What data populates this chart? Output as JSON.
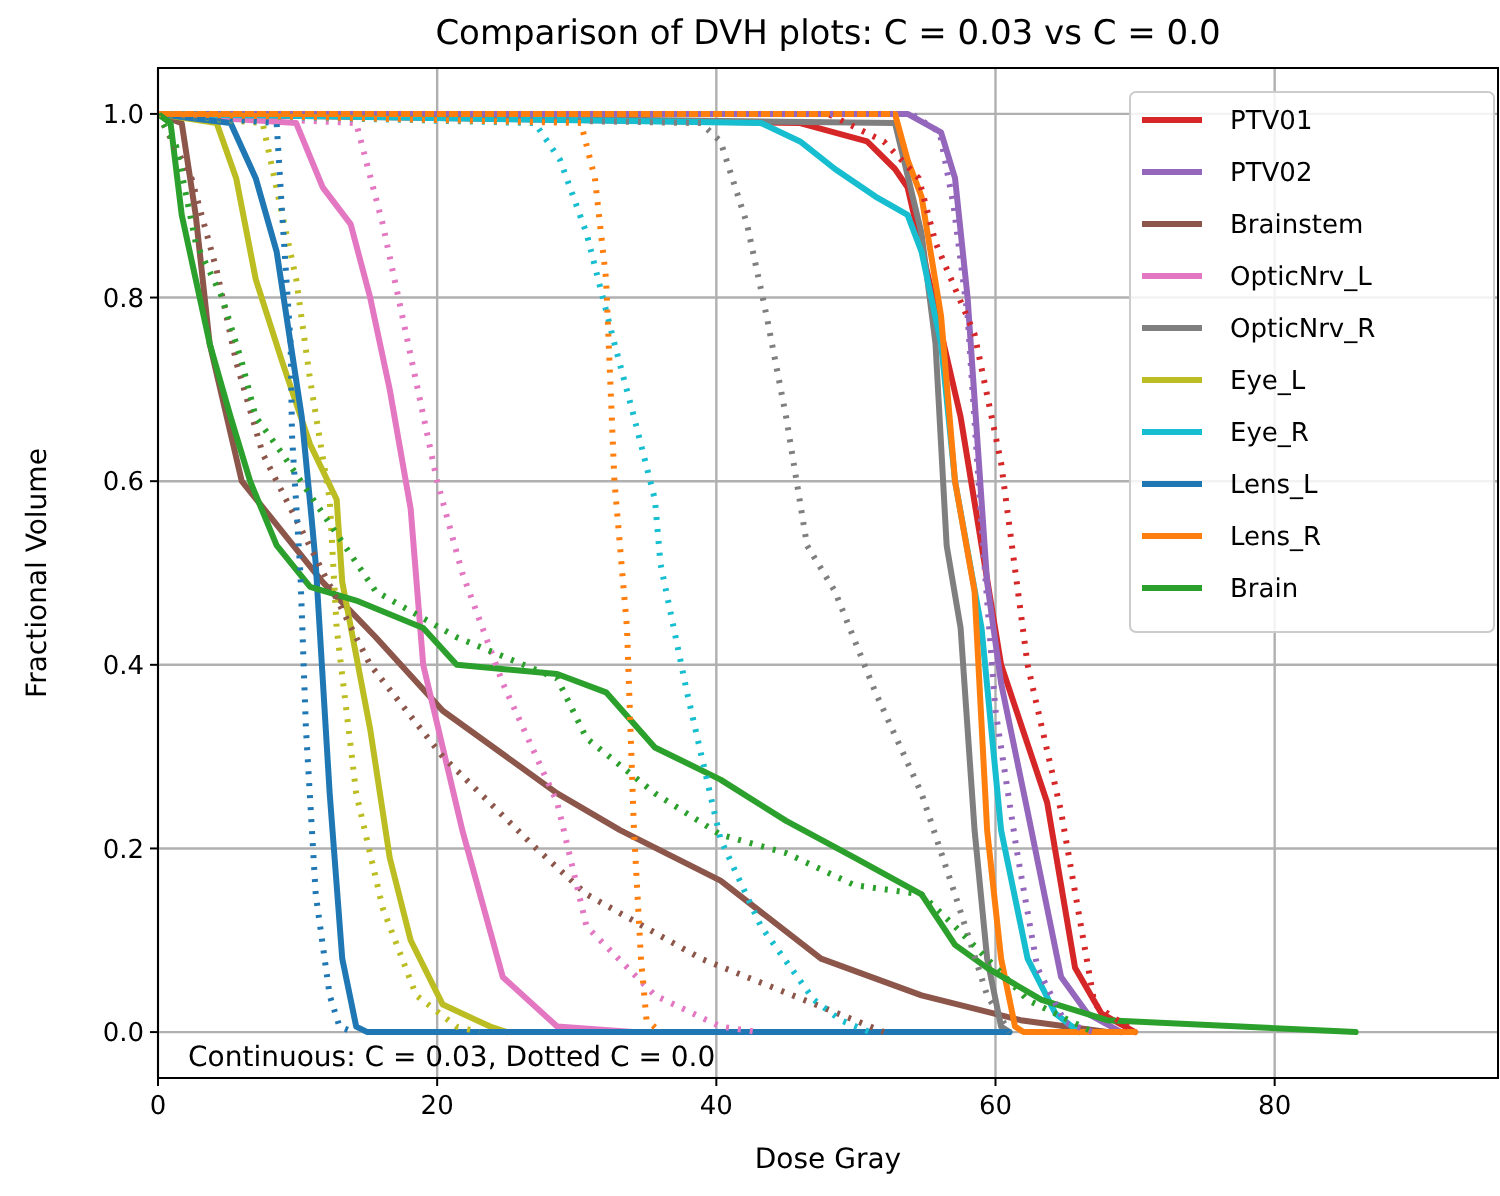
{
  "chart_data": {
    "type": "line",
    "title": "Comparison of DVH plots: C = 0.03 vs C = 0.0",
    "xlabel": "Dose Gray",
    "ylabel": "Fractional Volume",
    "annotations": [
      "Continuous: C = 0.03, Dotted C = 0.0"
    ],
    "xlim": [
      0,
      96
    ],
    "ylim": [
      -0.05,
      1.05
    ],
    "xticks": [
      0,
      20,
      40,
      60,
      80
    ],
    "yticks": [
      {
        "value": 0,
        "label": "0.0"
      },
      0.2,
      0.4,
      0.6,
      0.8,
      {
        "value": 1,
        "label": "1.0"
      }
    ],
    "grid": true,
    "legend": "top right",
    "series": [
      {
        "name": "PTV01",
        "color": "#d62728",
        "line_style": "solid",
        "x": [
          0,
          46,
          50.8,
          52.8,
          53.7,
          57.5,
          60.4,
          63.7,
          65.7,
          67.6,
          70
        ],
        "values": [
          1,
          0.99,
          0.97,
          0.94,
          0.92,
          0.67,
          0.4,
          0.25,
          0.07,
          0.02,
          0
        ]
      },
      {
        "name": "PTV02",
        "color": "#9467bd",
        "line_style": "solid",
        "x": [
          0,
          53.7,
          56.1,
          57.1,
          58,
          59.4,
          60.4,
          62.3,
          64.7,
          66.6,
          69
        ],
        "values": [
          1,
          1,
          0.98,
          0.93,
          0.8,
          0.49,
          0.38,
          0.24,
          0.06,
          0.02,
          0
        ]
      },
      {
        "name": "Brainstem",
        "color": "#8c564b",
        "line_style": "solid",
        "x": [
          0,
          1.7,
          2.7,
          3.7,
          6,
          11.8,
          15.6,
          20.4,
          28.6,
          33.1,
          40.3,
          47.5,
          54.7,
          61.8,
          68
        ],
        "values": [
          1,
          0.99,
          0.89,
          0.75,
          0.6,
          0.49,
          0.43,
          0.35,
          0.26,
          0.22,
          0.165,
          0.08,
          0.04,
          0.013,
          0
        ]
      },
      {
        "name": "OpticNrv_L",
        "color": "#e377c2",
        "line_style": "solid",
        "x": [
          0,
          9.9,
          11.8,
          13.8,
          15.2,
          16.6,
          18.1,
          19,
          21.8,
          24.7,
          28.6,
          34
        ],
        "values": [
          1,
          0.99,
          0.92,
          0.88,
          0.8,
          0.7,
          0.57,
          0.4,
          0.22,
          0.06,
          0.006,
          0
        ]
      },
      {
        "name": "OpticNrv_R",
        "color": "#7f7f7f",
        "line_style": "solid",
        "x": [
          0,
          52.8,
          54.7,
          55.7,
          56.5,
          57.5,
          58.5,
          59.4,
          60.4,
          61
        ],
        "values": [
          1,
          0.99,
          0.87,
          0.75,
          0.53,
          0.44,
          0.22,
          0.08,
          0.006,
          0
        ]
      },
      {
        "name": "Eye_L",
        "color": "#bcbd22",
        "line_style": "solid",
        "x": [
          0,
          4.2,
          5.6,
          7,
          8.9,
          10.9,
          12.8,
          13.2,
          15.2,
          16.6,
          18.1,
          20.4,
          23.8,
          25
        ],
        "values": [
          1,
          0.99,
          0.93,
          0.82,
          0.73,
          0.64,
          0.58,
          0.49,
          0.33,
          0.19,
          0.1,
          0.03,
          0.006,
          0
        ]
      },
      {
        "name": "Eye_R",
        "color": "#17becf",
        "line_style": "solid",
        "x": [
          0,
          43.2,
          46,
          48.5,
          51.4,
          53.7,
          54.7,
          56.1,
          57.1,
          59,
          60.4,
          62.3,
          64.3,
          66
        ],
        "values": [
          1,
          0.99,
          0.97,
          0.94,
          0.91,
          0.89,
          0.85,
          0.75,
          0.6,
          0.44,
          0.22,
          0.08,
          0.02,
          0
        ]
      },
      {
        "name": "Lens_L",
        "color": "#1f77b4",
        "line_style": "solid",
        "x": [
          0,
          5.2,
          7,
          8.5,
          9.5,
          10.3,
          11,
          11.3,
          12.3,
          13.2,
          14.2,
          15,
          61
        ],
        "values": [
          1,
          0.99,
          0.93,
          0.85,
          0.75,
          0.67,
          0.56,
          0.51,
          0.26,
          0.08,
          0.006,
          0,
          0
        ]
      },
      {
        "name": "Lens_R",
        "color": "#ff7f0e",
        "line_style": "solid",
        "x": [
          0,
          52.8,
          53.7,
          54.7,
          56.1,
          57.1,
          58.5,
          59.4,
          60.4,
          61.4,
          62,
          70
        ],
        "values": [
          1,
          1,
          0.95,
          0.91,
          0.78,
          0.6,
          0.48,
          0.22,
          0.08,
          0.006,
          0,
          0
        ]
      },
      {
        "name": "Brain",
        "color": "#2ca02c",
        "line_style": "solid",
        "x": [
          0,
          0.9,
          1.7,
          2.7,
          3.7,
          5.2,
          6.6,
          8.5,
          10.9,
          14.2,
          19,
          21.4,
          28.6,
          32.1,
          35.6,
          40.3,
          45,
          49.9,
          54.7,
          57.1,
          59.4,
          63.3,
          68,
          85.8
        ],
        "values": [
          1,
          0.99,
          0.89,
          0.82,
          0.75,
          0.67,
          0.6,
          0.53,
          0.485,
          0.47,
          0.44,
          0.4,
          0.39,
          0.37,
          0.31,
          0.275,
          0.23,
          0.19,
          0.15,
          0.095,
          0.07,
          0.035,
          0.013,
          0
        ]
      },
      {
        "color": "#d62728",
        "line_style": "dotted",
        "x": [
          0,
          48,
          52,
          54.5,
          55.7,
          58.5,
          60.4,
          62.3,
          64.7,
          67.1,
          70
        ],
        "values": [
          1,
          1,
          0.97,
          0.93,
          0.86,
          0.76,
          0.62,
          0.4,
          0.24,
          0.03,
          0
        ]
      },
      {
        "color": "#9467bd",
        "line_style": "dotted",
        "x": [
          0,
          54,
          56,
          57,
          58,
          59,
          60,
          61.5,
          63,
          65,
          67
        ],
        "values": [
          1,
          1,
          0.98,
          0.9,
          0.78,
          0.55,
          0.35,
          0.2,
          0.07,
          0.01,
          0
        ]
      },
      {
        "color": "#8c564b",
        "line_style": "dotted",
        "x": [
          0,
          2.4,
          4.2,
          5.6,
          7.5,
          15.2,
          20.4,
          27.1,
          30.7,
          38.9,
          49.9,
          52
        ],
        "values": [
          1,
          0.93,
          0.83,
          0.73,
          0.63,
          0.4,
          0.3,
          0.2,
          0.15,
          0.08,
          0.013,
          0
        ]
      },
      {
        "color": "#e377c2",
        "line_style": "dotted",
        "x": [
          0,
          14.2,
          16.1,
          17.5,
          20,
          21.8,
          24.7,
          28.6,
          30.7,
          35.6,
          40.3,
          43
        ],
        "values": [
          1,
          0.99,
          0.88,
          0.78,
          0.6,
          0.5,
          0.38,
          0.25,
          0.115,
          0.04,
          0.006,
          0
        ]
      },
      {
        "color": "#7f7f7f",
        "line_style": "dotted",
        "x": [
          0,
          38.9,
          40.3,
          42.2,
          43.6,
          45,
          46.5,
          48.5,
          51.4,
          54.7,
          57.1,
          59.4,
          61
        ],
        "values": [
          1,
          0.99,
          0.97,
          0.88,
          0.78,
          0.67,
          0.53,
          0.48,
          0.37,
          0.26,
          0.15,
          0.04,
          0
        ]
      },
      {
        "color": "#bcbd22",
        "line_style": "dotted",
        "x": [
          0,
          7.5,
          8.9,
          9.9,
          10.9,
          12.3,
          12.8,
          14.2,
          16.1,
          18.5,
          21.4,
          23
        ],
        "values": [
          1,
          0.99,
          0.89,
          0.82,
          0.71,
          0.58,
          0.44,
          0.26,
          0.135,
          0.04,
          0.006,
          0
        ]
      },
      {
        "color": "#17becf",
        "line_style": "dotted",
        "x": [
          0,
          27,
          28.8,
          30.7,
          32.7,
          34.1,
          35.6,
          36,
          37.9,
          40.3,
          43.2,
          47,
          48.9,
          51
        ],
        "values": [
          1,
          0.99,
          0.95,
          0.87,
          0.75,
          0.67,
          0.58,
          0.51,
          0.37,
          0.21,
          0.115,
          0.035,
          0.013,
          0
        ]
      },
      {
        "color": "#1f77b4",
        "line_style": "dotted",
        "x": [
          0,
          8.5,
          8.9,
          9.5,
          9.6,
          10.2,
          10.6,
          11.3,
          12.3,
          13,
          14
        ],
        "values": [
          1,
          0.99,
          0.89,
          0.75,
          0.65,
          0.5,
          0.33,
          0.15,
          0.04,
          0.006,
          0
        ]
      },
      {
        "color": "#ff7f0e",
        "line_style": "dotted",
        "x": [
          0,
          30.3,
          31.3,
          32.1,
          32.7,
          33.6,
          34.1,
          34.6,
          35,
          36
        ],
        "values": [
          1,
          0.99,
          0.93,
          0.82,
          0.6,
          0.44,
          0.22,
          0.08,
          0.013,
          0
        ]
      },
      {
        "color": "#2ca02c",
        "line_style": "dotted",
        "x": [
          0,
          1.3,
          2.7,
          4.6,
          6,
          7,
          8.9,
          10.9,
          15.6,
          21.4,
          28.6,
          30.7,
          35.6,
          40.3,
          45,
          49.9,
          54.7,
          57.1,
          59.4,
          62.3,
          67
        ],
        "values": [
          1,
          0.965,
          0.86,
          0.8,
          0.73,
          0.67,
          0.63,
          0.585,
          0.48,
          0.43,
          0.385,
          0.32,
          0.26,
          0.215,
          0.195,
          0.16,
          0.15,
          0.115,
          0.08,
          0.035,
          0
        ]
      }
    ]
  }
}
